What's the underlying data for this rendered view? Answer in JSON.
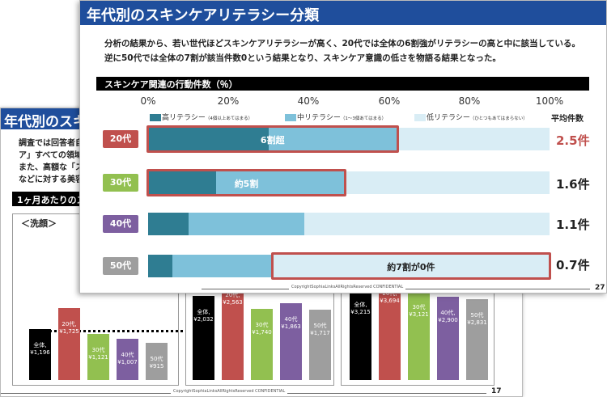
{
  "back_slide": {
    "title": "年代別のスキ",
    "text_lines": [
      "調査では回答者自",
      "ア」すべての領域で",
      "また、高額な「スペ",
      "などに対する美容"
    ],
    "section_title": "1ヶ月あたりのスキ",
    "panel_label": "＜洗顔＞",
    "panel1_bars": [
      {
        "label": "全体,",
        "value": "¥1,196",
        "color": "#000000",
        "height": 63
      },
      {
        "label": "20代,",
        "value": "¥1,725",
        "color": "#c0504d",
        "height": 89
      },
      {
        "label": "30代",
        "value": "¥1,121",
        "color": "#92c050",
        "height": 57
      },
      {
        "label": "40代",
        "value": "¥1,007",
        "color": "#7d5fa0",
        "height": 51
      },
      {
        "label": "50代",
        "value": "¥915",
        "color": "#9e9e9e",
        "height": 46
      }
    ],
    "panel2_bars": [
      {
        "label": "全体,",
        "value": "¥2,032",
        "color": "#000000",
        "height": 104
      },
      {
        "label": "20代,",
        "value": "¥2,563",
        "color": "#c0504d",
        "height": 125
      },
      {
        "label": "30代",
        "value": "¥1,740",
        "color": "#92c050",
        "height": 88
      },
      {
        "label": "40代",
        "value": "¥1,863",
        "color": "#7d5fa0",
        "height": 95
      },
      {
        "label": "50代",
        "value": "¥1,717",
        "color": "#9e9e9e",
        "height": 87
      }
    ],
    "panel3_bars": [
      {
        "label": "全体,",
        "value": "¥3,215",
        "color": "#000000",
        "height": 113
      },
      {
        "label": "20代,",
        "value": "¥3,694",
        "color": "#c0504d",
        "height": 127
      },
      {
        "label": "30代",
        "value": "¥3,121",
        "color": "#92c050",
        "height": 110
      },
      {
        "label": "40代,",
        "value": "¥2,900",
        "color": "#7d5fa0",
        "height": 103
      },
      {
        "label": "50代",
        "value": "¥2,831",
        "color": "#9e9e9e",
        "height": 100
      }
    ],
    "copyright": "CopyrightSophiaLinksAllRightsReserved CONFIDENTIAL",
    "page_number": "17"
  },
  "front_slide": {
    "title": "年代別のスキンケアリテラシー分類",
    "summary_lines": [
      "分析の結果から、若い世代ほどスキンケアリテラシーが高く、20代では全体の6割強がリテラシーの高と中に該当している。",
      "逆に50代では全体の7割が該当件数0という結果となり、スキンケア意識の低さを物語る結果となった。"
    ],
    "chart_title": "スキンケア関連の行動件数（％）",
    "copyright": "CopyrightSophiaLinksAllRightsReserved CONFIDENTIAL",
    "page_number": "27"
  },
  "chart_data": {
    "type": "bar",
    "orientation": "horizontal",
    "stacked": true,
    "title": "スキンケア関連の行動件数（％）",
    "x_ticks": [
      "0%",
      "20%",
      "40%",
      "60%",
      "80%",
      "100%"
    ],
    "xlim": [
      0,
      100
    ],
    "legend": [
      {
        "name": "高リテラシー",
        "note": "（4個以上あてはまる）",
        "color": "#2f7d92"
      },
      {
        "name": "中リテラシー",
        "note": "（1～3個あてはまる）",
        "color": "#7ec1da"
      },
      {
        "name": "低リテラシー",
        "note": "（ひとつもあてはまらない）",
        "color": "#d9edf5"
      }
    ],
    "avg_header": "平均件数",
    "categories": [
      "20代",
      "30代",
      "40代",
      "50代"
    ],
    "category_colors": [
      "#c0504d",
      "#92c050",
      "#7d5fa0",
      "#9e9e9e"
    ],
    "series": [
      {
        "name": "高リテラシー",
        "values": [
          30,
          17,
          10,
          6
        ]
      },
      {
        "name": "中リテラシー",
        "values": [
          32,
          32,
          29,
          25
        ]
      },
      {
        "name": "低リテラシー",
        "values": [
          38,
          51,
          61,
          69
        ]
      }
    ],
    "averages": [
      "2.5件",
      "1.6件",
      "1.1件",
      "0.7件"
    ],
    "highlights": [
      {
        "category": "20代",
        "label": "6割超",
        "from": 0,
        "to": 62
      },
      {
        "category": "30代",
        "label": "約5割",
        "from": 0,
        "to": 49
      },
      {
        "category": "50代",
        "label": "約7割が0件",
        "from": 31,
        "to": 100
      }
    ]
  }
}
